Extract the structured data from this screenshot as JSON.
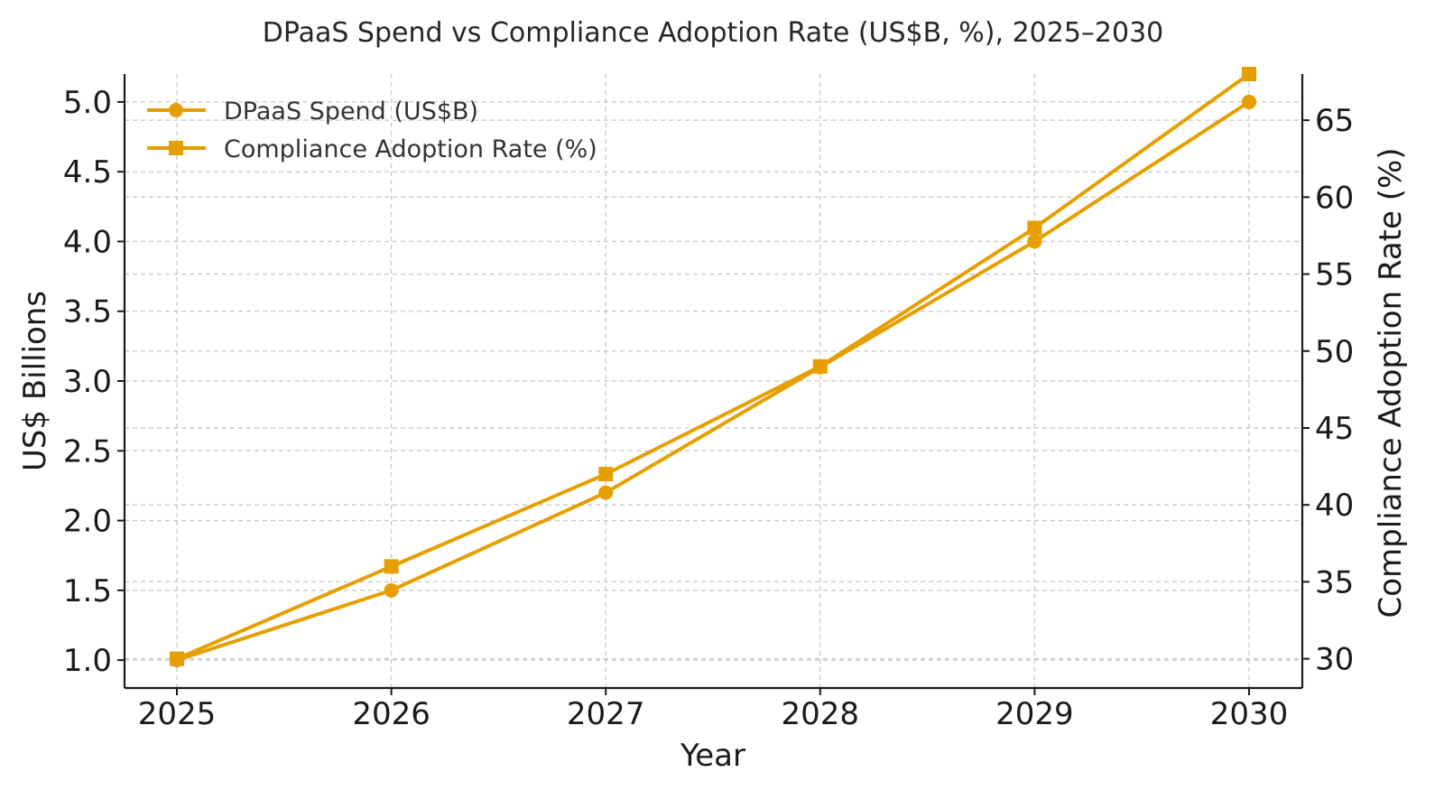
{
  "chart_data": {
    "type": "line",
    "title": "DPaaS Spend vs Compliance Adoption Rate (US$B, %), 2025–2030",
    "xlabel": "Year",
    "ylabel_left": "US$ Billions",
    "ylabel_right": "Compliance Adoption Rate (%)",
    "categories": [
      "2025",
      "2026",
      "2027",
      "2028",
      "2029",
      "2030"
    ],
    "y_left_lim": [
      0.8,
      5.2
    ],
    "y_left_ticks": [
      "1.0",
      "1.5",
      "2.0",
      "2.5",
      "3.0",
      "3.5",
      "4.0",
      "4.5",
      "5.0"
    ],
    "y_right_lim": [
      28.1,
      68.0
    ],
    "y_right_ticks": [
      "30",
      "35",
      "40",
      "45",
      "50",
      "55",
      "60",
      "65"
    ],
    "grid": true,
    "legend_position": "top-left",
    "color": "#E69F00",
    "series": [
      {
        "name": "DPaaS Spend (US$B)",
        "axis": "left",
        "marker": "circle",
        "values": [
          1.0,
          1.5,
          2.2,
          3.1,
          4.0,
          5.0
        ]
      },
      {
        "name": "Compliance Adoption Rate (%)",
        "axis": "right",
        "marker": "square",
        "values": [
          30,
          36,
          42,
          49,
          58,
          68
        ]
      }
    ]
  }
}
